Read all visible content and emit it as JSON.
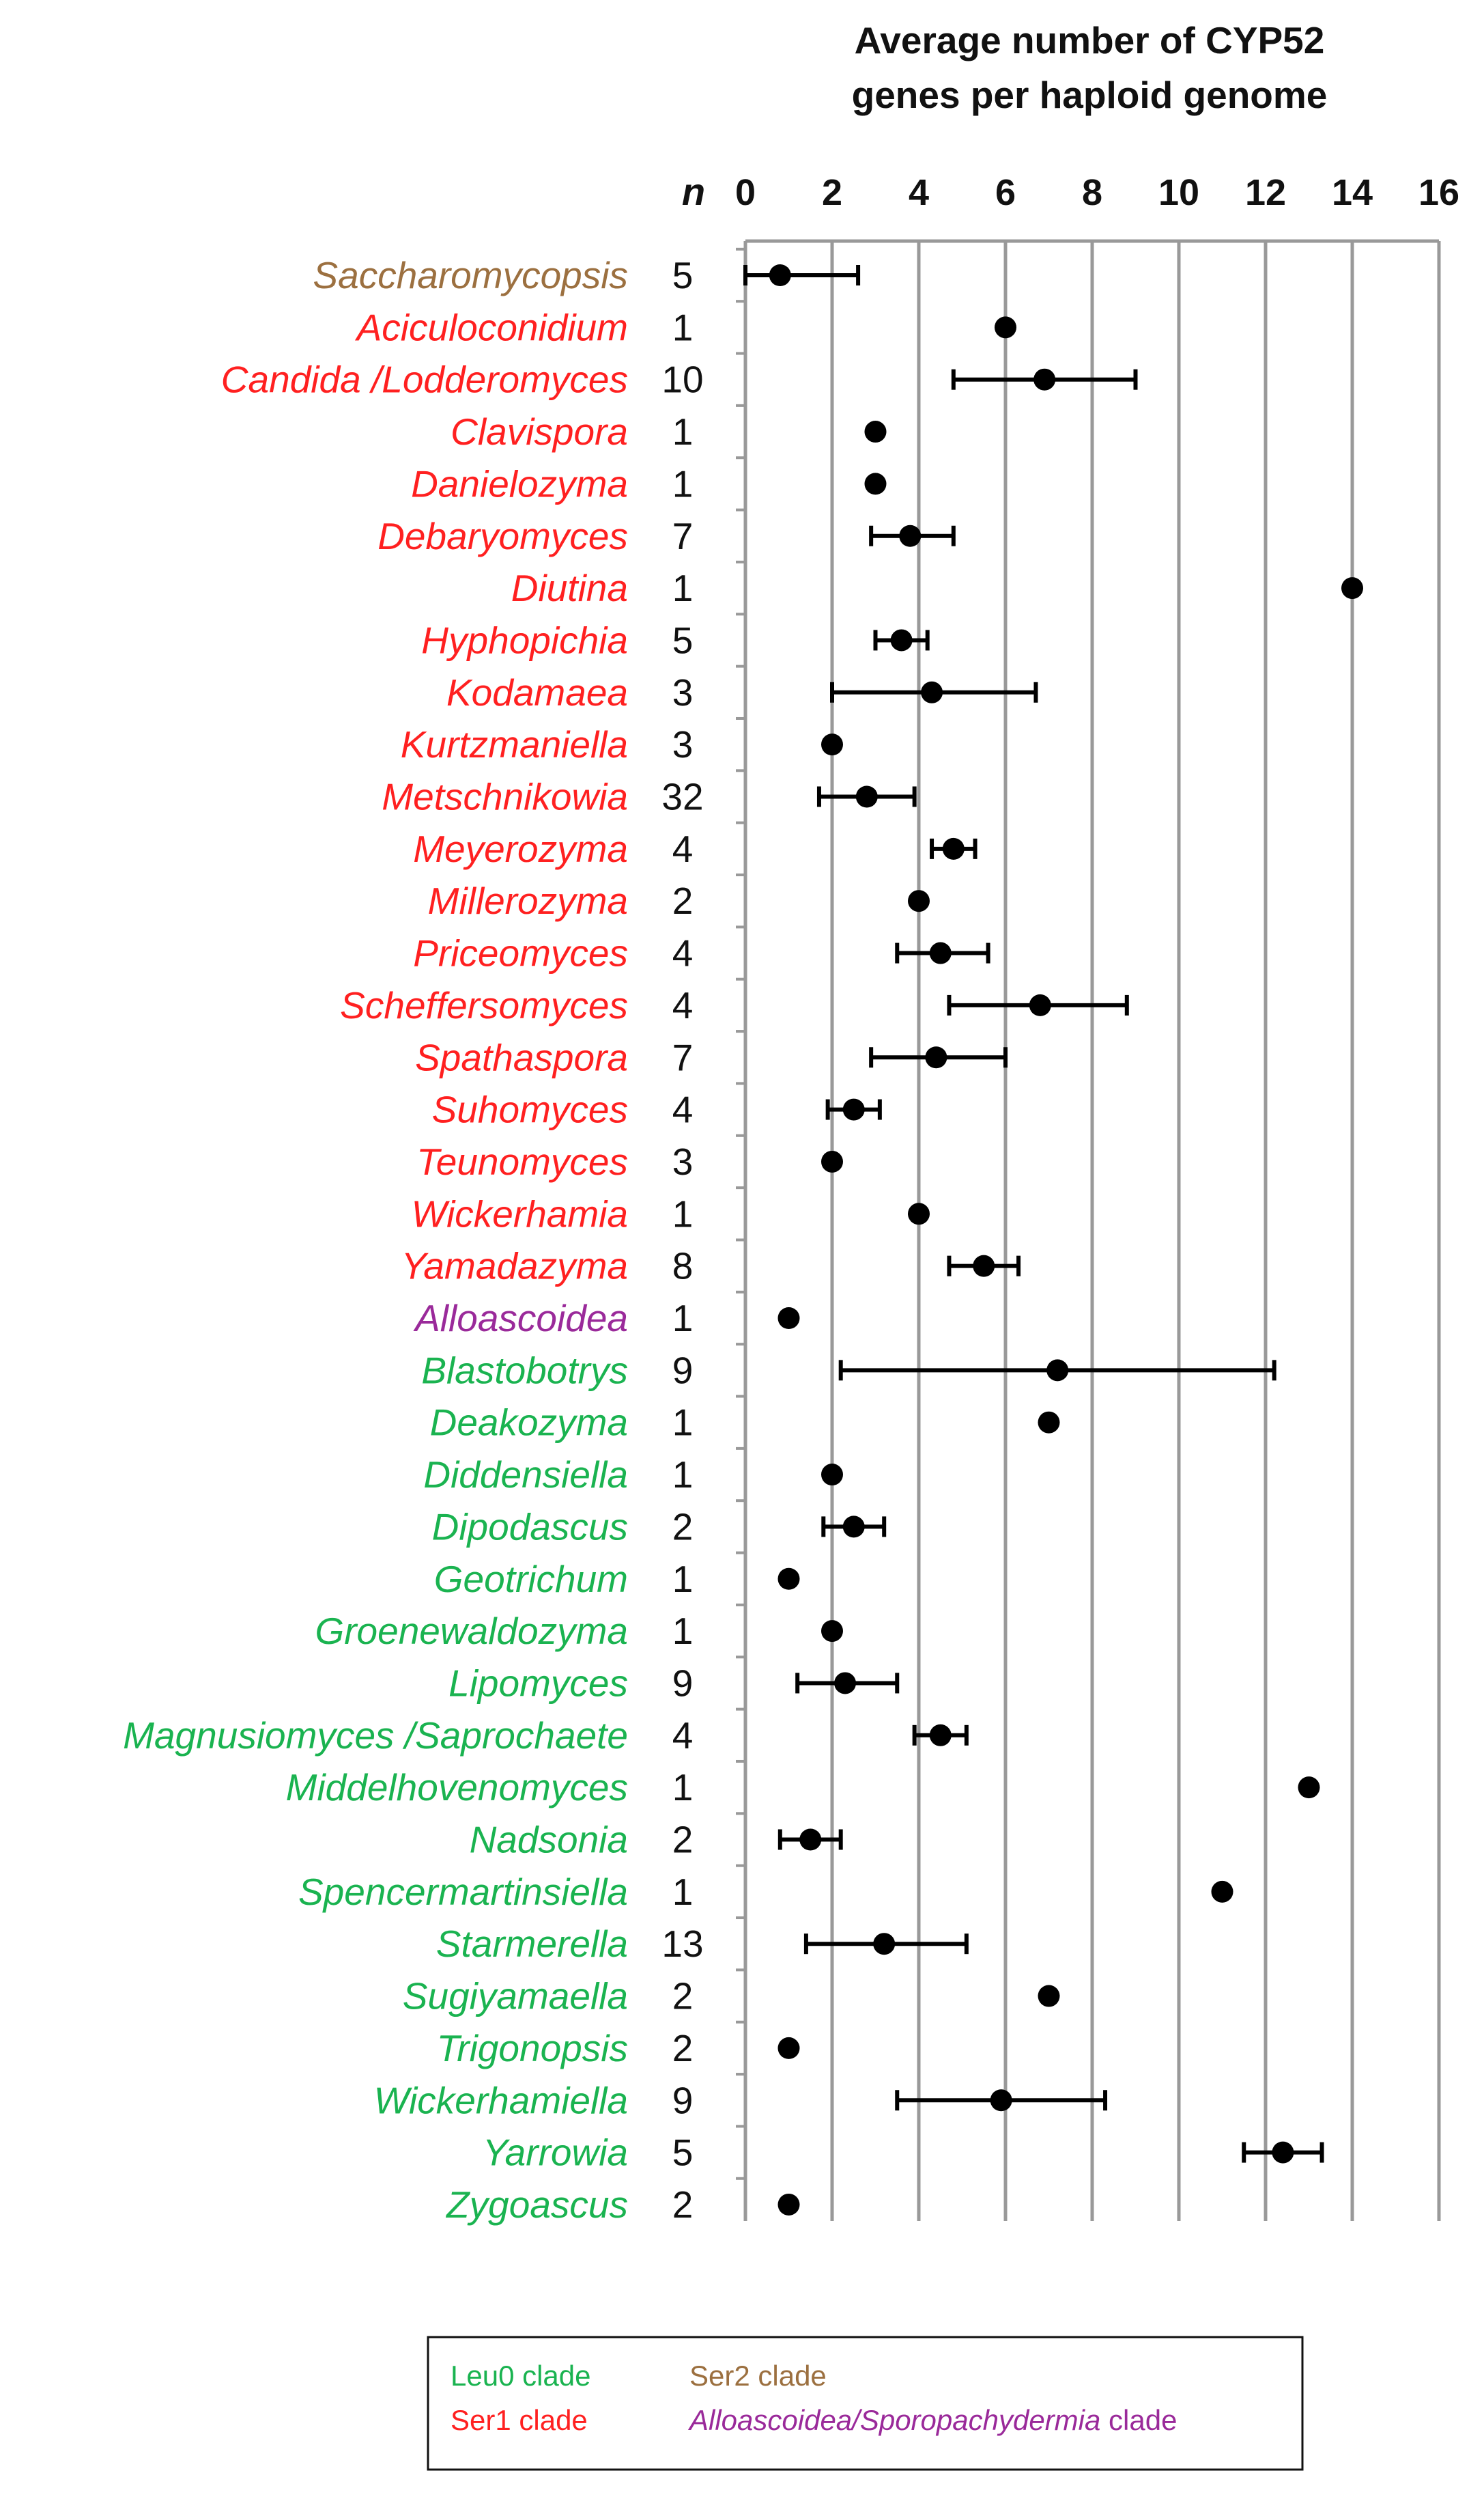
{
  "chart_data": {
    "type": "scatter",
    "title": [
      "Average number of CYP52",
      "genes per haploid genome"
    ],
    "n_header": "n",
    "xlim": [
      0,
      16
    ],
    "xticks": [
      "0",
      "2",
      "4",
      "6",
      "8",
      "10",
      "12",
      "14",
      "16"
    ],
    "grid": "vertical",
    "colors": {
      "Ser2": "#9c7040",
      "Ser1": "#ff2020",
      "Alloascoidea": "#9a2a9a",
      "Leu0": "#1ab350",
      "marker": "#000000",
      "grid": "#999999"
    },
    "rows": [
      {
        "genus": "Saccharomycopsis",
        "n": "5",
        "clade": "Ser2",
        "mean": 0.8,
        "low": 0.0,
        "high": 2.6
      },
      {
        "genus": "Aciculoconidium",
        "n": "1",
        "clade": "Ser1",
        "mean": 6.0,
        "low": null,
        "high": null
      },
      {
        "genus": "Candida /Lodderomyces",
        "n": "10",
        "clade": "Ser1",
        "mean": 6.9,
        "low": 4.8,
        "high": 9.0
      },
      {
        "genus": "Clavispora",
        "n": "1",
        "clade": "Ser1",
        "mean": 3.0,
        "low": null,
        "high": null
      },
      {
        "genus": "Danielozyma",
        "n": "1",
        "clade": "Ser1",
        "mean": 3.0,
        "low": null,
        "high": null
      },
      {
        "genus": "Debaryomyces",
        "n": "7",
        "clade": "Ser1",
        "mean": 3.8,
        "low": 2.9,
        "high": 4.8
      },
      {
        "genus": "Diutina",
        "n": "1",
        "clade": "Ser1",
        "mean": 14.0,
        "low": null,
        "high": null
      },
      {
        "genus": "Hyphopichia",
        "n": "5",
        "clade": "Ser1",
        "mean": 3.6,
        "low": 3.0,
        "high": 4.2
      },
      {
        "genus": "Kodamaea",
        "n": "3",
        "clade": "Ser1",
        "mean": 4.3,
        "low": 2.0,
        "high": 6.7
      },
      {
        "genus": "Kurtzmaniella",
        "n": "3",
        "clade": "Ser1",
        "mean": 2.0,
        "low": null,
        "high": null
      },
      {
        "genus": "Metschnikowia",
        "n": "32",
        "clade": "Ser1",
        "mean": 2.8,
        "low": 1.7,
        "high": 3.9
      },
      {
        "genus": "Meyerozyma",
        "n": "4",
        "clade": "Ser1",
        "mean": 4.8,
        "low": 4.3,
        "high": 5.3
      },
      {
        "genus": "Millerozyma",
        "n": "2",
        "clade": "Ser1",
        "mean": 4.0,
        "low": null,
        "high": null
      },
      {
        "genus": "Priceomyces",
        "n": "4",
        "clade": "Ser1",
        "mean": 4.5,
        "low": 3.5,
        "high": 5.6
      },
      {
        "genus": "Scheffersomyces",
        "n": "4",
        "clade": "Ser1",
        "mean": 6.8,
        "low": 4.7,
        "high": 8.8
      },
      {
        "genus": "Spathaspora",
        "n": "7",
        "clade": "Ser1",
        "mean": 4.4,
        "low": 2.9,
        "high": 6.0
      },
      {
        "genus": "Suhomyces",
        "n": "4",
        "clade": "Ser1",
        "mean": 2.5,
        "low": 1.9,
        "high": 3.1
      },
      {
        "genus": "Teunomyces",
        "n": "3",
        "clade": "Ser1",
        "mean": 2.0,
        "low": null,
        "high": null
      },
      {
        "genus": "Wickerhamia",
        "n": "1",
        "clade": "Ser1",
        "mean": 4.0,
        "low": null,
        "high": null
      },
      {
        "genus": "Yamadazyma",
        "n": "8",
        "clade": "Ser1",
        "mean": 5.5,
        "low": 4.7,
        "high": 6.3
      },
      {
        "genus": "Alloascoidea",
        "n": "1",
        "clade": "Alloascoidea",
        "mean": 1.0,
        "low": null,
        "high": null
      },
      {
        "genus": "Blastobotrys",
        "n": "9",
        "clade": "Leu0",
        "mean": 7.2,
        "low": 2.2,
        "high": 12.2
      },
      {
        "genus": "Deakozyma",
        "n": "1",
        "clade": "Leu0",
        "mean": 7.0,
        "low": null,
        "high": null
      },
      {
        "genus": "Diddensiella",
        "n": "1",
        "clade": "Leu0",
        "mean": 2.0,
        "low": null,
        "high": null
      },
      {
        "genus": "Dipodascus",
        "n": "2",
        "clade": "Leu0",
        "mean": 2.5,
        "low": 1.8,
        "high": 3.2
      },
      {
        "genus": "Geotrichum",
        "n": "1",
        "clade": "Leu0",
        "mean": 1.0,
        "low": null,
        "high": null
      },
      {
        "genus": "Groenewaldozyma",
        "n": "1",
        "clade": "Leu0",
        "mean": 2.0,
        "low": null,
        "high": null
      },
      {
        "genus": "Lipomyces",
        "n": "9",
        "clade": "Leu0",
        "mean": 2.3,
        "low": 1.2,
        "high": 3.5
      },
      {
        "genus": "Magnusiomyces /Saprochaete",
        "n": "4",
        "clade": "Leu0",
        "mean": 4.5,
        "low": 3.9,
        "high": 5.1
      },
      {
        "genus": "Middelhovenomyces",
        "n": "1",
        "clade": "Leu0",
        "mean": 13.0,
        "low": null,
        "high": null
      },
      {
        "genus": "Nadsonia",
        "n": "2",
        "clade": "Leu0",
        "mean": 1.5,
        "low": 0.8,
        "high": 2.2
      },
      {
        "genus": "Spencermartinsiella",
        "n": "1",
        "clade": "Leu0",
        "mean": 11.0,
        "low": null,
        "high": null
      },
      {
        "genus": "Starmerella",
        "n": "13",
        "clade": "Leu0",
        "mean": 3.2,
        "low": 1.4,
        "high": 5.1
      },
      {
        "genus": "Sugiyamaella",
        "n": "2",
        "clade": "Leu0",
        "mean": 7.0,
        "low": null,
        "high": null
      },
      {
        "genus": "Trigonopsis",
        "n": "2",
        "clade": "Leu0",
        "mean": 1.0,
        "low": null,
        "high": null
      },
      {
        "genus": "Wickerhamiella",
        "n": "9",
        "clade": "Leu0",
        "mean": 5.9,
        "low": 3.5,
        "high": 8.3
      },
      {
        "genus": "Yarrowia",
        "n": "5",
        "clade": "Leu0",
        "mean": 12.4,
        "low": 11.5,
        "high": 13.3
      },
      {
        "genus": "Zygoascus",
        "n": "2",
        "clade": "Leu0",
        "mean": 1.0,
        "low": null,
        "high": null
      }
    ],
    "legend": {
      "position": "bottom",
      "leu0": "Leu0 clade",
      "ser1": "Ser1 clade",
      "ser2": "Ser2 clade",
      "allo_italic": "Alloascoidea/Sporopachydermia",
      "allo_suffix": " clade"
    }
  }
}
